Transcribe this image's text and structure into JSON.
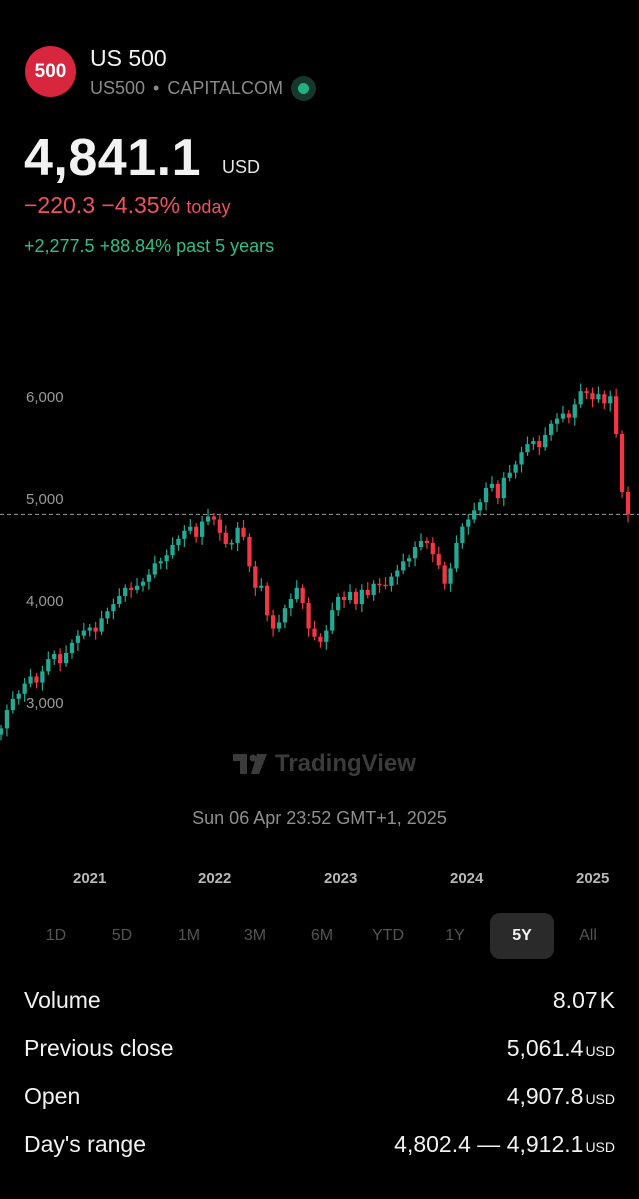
{
  "header": {
    "logo_text": "500",
    "title": "US 500",
    "symbol": "US500",
    "separator": "•",
    "exchange": "CAPITALCOM",
    "status": "market-status-icon"
  },
  "quote": {
    "price": "4,841.1",
    "currency": "USD",
    "change_today": "−220.3 −4.35%",
    "change_today_label": "today",
    "change_5y": "+2,277.5 +88.84% past 5 years"
  },
  "colors": {
    "up": "#22ab94",
    "down": "#f23645",
    "logo_bg": "#d7263d"
  },
  "chart_data": {
    "type": "candlestick",
    "interval": "weekly",
    "y_ticks": [
      3000,
      4000,
      5000,
      6000
    ],
    "y_tick_labels": [
      "3,000",
      "4,000",
      "5,000",
      "6,000"
    ],
    "ylim": [
      2430,
      6650
    ],
    "current_price_line": 4841.1,
    "x_labels": [
      "2021",
      "2022",
      "2023",
      "2024",
      "2025"
    ],
    "closes": [
      2740,
      2920,
      3030,
      3080,
      3180,
      3250,
      3190,
      3300,
      3420,
      3470,
      3380,
      3480,
      3580,
      3650,
      3700,
      3730,
      3690,
      3820,
      3890,
      3960,
      4040,
      4120,
      4100,
      4140,
      4180,
      4250,
      4360,
      4380,
      4440,
      4540,
      4600,
      4680,
      4720,
      4620,
      4770,
      4820,
      4790,
      4660,
      4550,
      4560,
      4710,
      4620,
      4330,
      4120,
      4140,
      3850,
      3720,
      3780,
      3920,
      4010,
      4120,
      3970,
      3720,
      3640,
      3590,
      3700,
      3900,
      4030,
      4000,
      4080,
      3960,
      4100,
      4050,
      4160,
      4150,
      4140,
      4230,
      4290,
      4380,
      4410,
      4520,
      4580,
      4560,
      4450,
      4340,
      4160,
      4310,
      4560,
      4720,
      4790,
      4880,
      4960,
      5100,
      5140,
      5000,
      5200,
      5250,
      5330,
      5450,
      5530,
      5560,
      5500,
      5620,
      5730,
      5780,
      5830,
      5790,
      5920,
      6050,
      6030,
      5970,
      6020,
      5930,
      6000,
      5630,
      5060,
      4841
    ]
  },
  "watermark": "TradingView",
  "timestamp": "Sun 06 Apr 23:52 GMT+1, 2025",
  "ranges": [
    "1D",
    "5D",
    "1M",
    "3M",
    "6M",
    "YTD",
    "1Y",
    "5Y",
    "All"
  ],
  "active_range": "5Y",
  "stats": [
    {
      "label": "Volume",
      "value": "8.07",
      "unit": "K"
    },
    {
      "label": "Previous close",
      "value": "5,061.4",
      "unit": "USD"
    },
    {
      "label": "Open",
      "value": "4,907.8",
      "unit": "USD"
    },
    {
      "label": "Day's range",
      "value": "4,802.4 — 4,912.1",
      "unit": "USD"
    }
  ]
}
